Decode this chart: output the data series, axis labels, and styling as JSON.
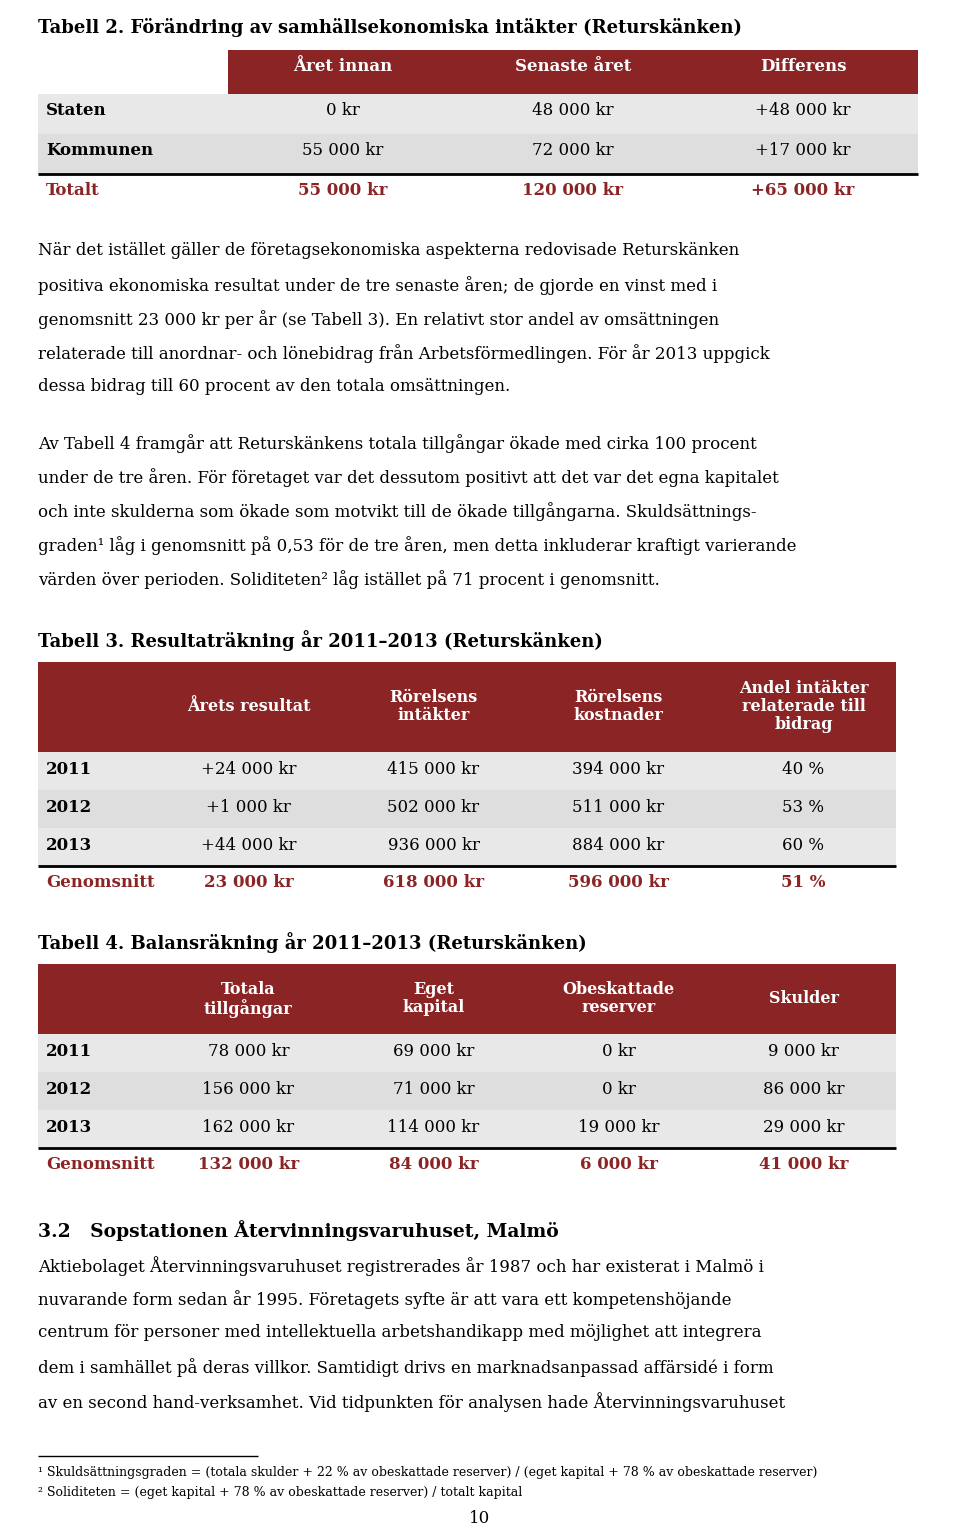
{
  "page_bg": "#ffffff",
  "dark_red": "#8B2525",
  "light_gray": "#DCDCDC",
  "lighter_gray": "#E8E8E8",
  "text_black": "#000000",
  "text_red": "#8B2525",
  "white": "#ffffff",
  "table2_title": "Tabell 2. Förändring av samhällsekonomiska intäkter (Returskänken)",
  "table2_headers": [
    "",
    "Året innan",
    "Senaste året",
    "Differens"
  ],
  "table2_rows": [
    [
      "Staten",
      "0 kr",
      "48 000 kr",
      "+48 000 kr"
    ],
    [
      "Kommunen",
      "55 000 kr",
      "72 000 kr",
      "+17 000 kr"
    ]
  ],
  "table2_total": [
    "Totalt",
    "55 000 kr",
    "120 000 kr",
    "+65 000 kr"
  ],
  "p1_lines": [
    "När det istället gäller de företagsekonomiska aspekterna redovisade Returskänken",
    "positiva ekonomiska resultat under de tre senaste åren; de gjorde en vinst med i",
    "genomsnitt 23 000 kr per år (se Tabell 3). En relativt stor andel av omsättningen",
    "relaterade till anordnar- och lönebidrag från Arbetsförmedlingen. För år 2013 uppgick",
    "dessa bidrag till 60 procent av den totala omsättningen."
  ],
  "p2_lines": [
    "Av Tabell 4 framgår att Returskänkens totala tillgångar ökade med cirka 100 procent",
    "under de tre åren. För företaget var det dessutom positivt att det var det egna kapitalet",
    "och inte skulderna som ökade som motvikt till de ökade tillgångarna. Skuldsättnings-",
    "graden¹ låg i genomsnitt på 0,53 för de tre åren, men detta inkluderar kraftigt varierande",
    "värden över perioden. Soliditeten² låg istället på 71 procent i genomsnitt."
  ],
  "table3_title": "Tabell 3. Resultaträkning år 2011–2013 (Returskänken)",
  "table3_headers": [
    "Årets resultat",
    "Rörelsens\nintäkter",
    "Rörelsens\nkostnader",
    "Andel intäkter\nrelaterade till\nbidrag"
  ],
  "table3_rows": [
    [
      "2011",
      "+24 000 kr",
      "415 000 kr",
      "394 000 kr",
      "40 %"
    ],
    [
      "2012",
      "+1 000 kr",
      "502 000 kr",
      "511 000 kr",
      "53 %"
    ],
    [
      "2013",
      "+44 000 kr",
      "936 000 kr",
      "884 000 kr",
      "60 %"
    ]
  ],
  "table3_total": [
    "Genomsnitt",
    "23 000 kr",
    "618 000 kr",
    "596 000 kr",
    "51 %"
  ],
  "table4_title": "Tabell 4. Balansräkning år 2011–2013 (Returskänken)",
  "table4_headers": [
    "Totala\ntillgångar",
    "Eget\nkapital",
    "Obeskattade\nreserver",
    "Skulder"
  ],
  "table4_rows": [
    [
      "2011",
      "78 000 kr",
      "69 000 kr",
      "0 kr",
      "9 000 kr"
    ],
    [
      "2012",
      "156 000 kr",
      "71 000 kr",
      "0 kr",
      "86 000 kr"
    ],
    [
      "2013",
      "162 000 kr",
      "114 000 kr",
      "19 000 kr",
      "29 000 kr"
    ]
  ],
  "table4_total": [
    "Genomsnitt",
    "132 000 kr",
    "84 000 kr",
    "6 000 kr",
    "41 000 kr"
  ],
  "section_title": "3.2   Sopstationen Återvinningsvaruhuset, Malmö",
  "p3_lines": [
    "Aktiebolaget Återvinningsvaruhuset registrerades år 1987 och har existerat i Malmö i",
    "nuvarande form sedan år 1995. Företagets syfte är att vara ett kompetenshöjande",
    "centrum för personer med intellektuella arbetshandikapp med möjlighet att integrera",
    "dem i samhället på deras villkor. Samtidigt drivs en marknadsanpassad affärsidé i form",
    "av en second hand-verksamhet. Vid tidpunkten för analysen hade Återvinningsvaruhuset"
  ],
  "footnote1": "¹ Skuldsättningsgraden = (totala skulder + 22 % av obeskattade reserver) / (eget kapital + 78 % av obeskattade reserver)",
  "footnote2": "² Soliditeten = (eget kapital + 78 % av obeskattade reserver) / totalt kapital",
  "page_number": "10"
}
